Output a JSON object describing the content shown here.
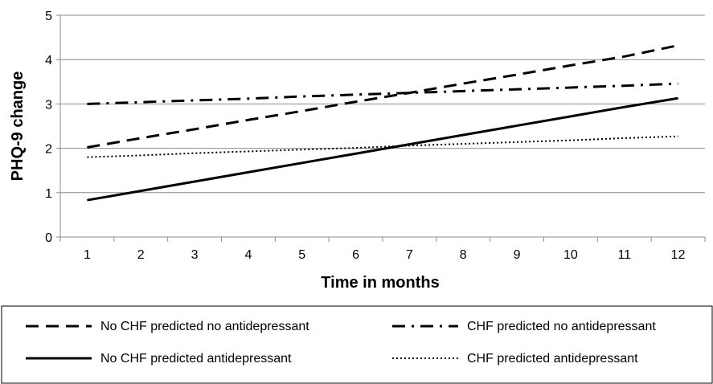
{
  "chart_data": {
    "type": "line",
    "title": "",
    "xlabel": "Time in months",
    "ylabel": "PHQ-9 change",
    "x": [
      1,
      2,
      3,
      4,
      5,
      6,
      7,
      8,
      9,
      10,
      11,
      12
    ],
    "x_tick_labels": [
      "1",
      "2",
      "3",
      "4",
      "5",
      "6",
      "7",
      "8",
      "9",
      "10",
      "11",
      "12"
    ],
    "y_tick_labels": [
      "0",
      "1",
      "2",
      "3",
      "4",
      "5"
    ],
    "ylim": [
      0,
      5
    ],
    "grid": "horizontal",
    "legend_position": "bottom",
    "series": [
      {
        "name": "No CHF predicted no antidepressant",
        "style": "dashed",
        "color": "#000000",
        "values": [
          2.02,
          2.23,
          2.43,
          2.64,
          2.84,
          3.05,
          3.25,
          3.46,
          3.66,
          3.87,
          4.07,
          4.32
        ]
      },
      {
        "name": "CHF predicted no antidepressant",
        "style": "dash-dot",
        "color": "#000000",
        "values": [
          3.0,
          3.04,
          3.08,
          3.12,
          3.17,
          3.21,
          3.25,
          3.29,
          3.33,
          3.37,
          3.41,
          3.46
        ]
      },
      {
        "name": "No CHF predicted antidepressant",
        "style": "solid",
        "color": "#000000",
        "values": [
          0.83,
          1.04,
          1.25,
          1.46,
          1.67,
          1.88,
          2.09,
          2.3,
          2.51,
          2.72,
          2.93,
          3.13
        ]
      },
      {
        "name": "CHF predicted antidepressant",
        "style": "dotted",
        "color": "#000000",
        "values": [
          1.8,
          1.84,
          1.89,
          1.93,
          1.97,
          2.01,
          2.06,
          2.1,
          2.14,
          2.18,
          2.23,
          2.27
        ]
      }
    ]
  }
}
